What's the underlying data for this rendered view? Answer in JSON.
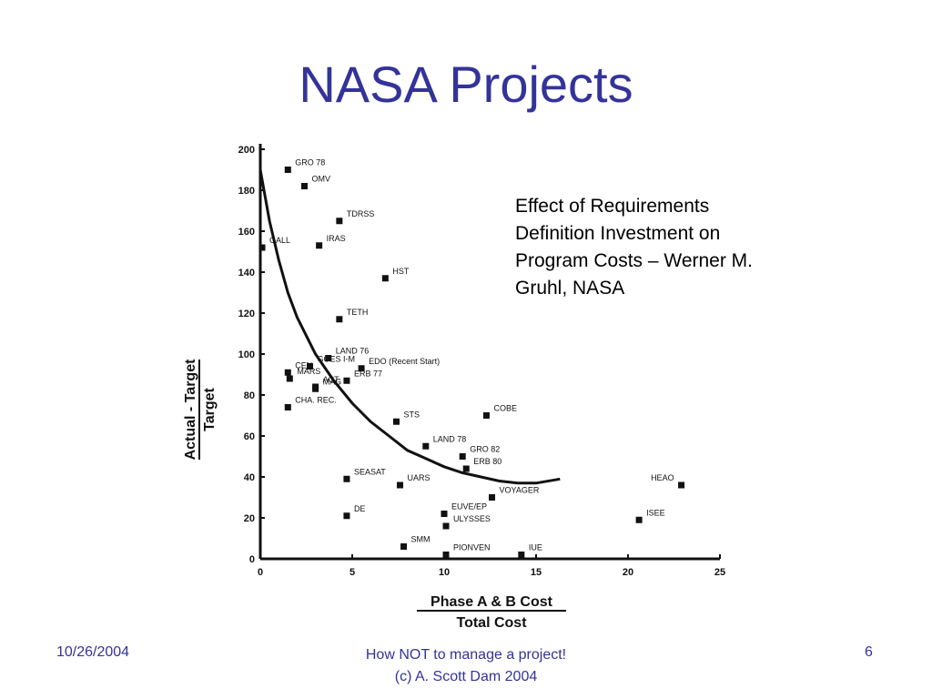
{
  "slide": {
    "title": "NASA Projects",
    "caption_lines": [
      "Effect of Requirements",
      "Definition Investment on",
      "Program Costs – Werner M.",
      "Gruhl, NASA"
    ]
  },
  "footer": {
    "date": "10/26/2004",
    "center_line1": "How NOT to manage a project!",
    "center_line2": "(c) A. Scott Dam 2004",
    "page": "6"
  },
  "colors": {
    "title": "#333399",
    "footer": "#333399",
    "points": "#111111"
  },
  "chart_data": {
    "type": "scatter",
    "xlabel": "Phase A & B Cost",
    "xlabel2": "Total Cost",
    "ylabel": "Actual - Target",
    "ylabel2": "Target",
    "xlim": [
      0,
      25
    ],
    "ylim": [
      0,
      200
    ],
    "x_ticks": [
      "0",
      "5",
      "10",
      "15",
      "20",
      "25"
    ],
    "y_ticks": [
      "0",
      "20",
      "40",
      "60",
      "80",
      "100",
      "120",
      "140",
      "160",
      "180",
      "200"
    ],
    "grid": false,
    "points": [
      {
        "label": "GRO 78",
        "x": 1.5,
        "y": 190
      },
      {
        "label": "OMV",
        "x": 2.4,
        "y": 182
      },
      {
        "label": "TDRSS",
        "x": 4.3,
        "y": 165
      },
      {
        "label": "GALL",
        "x": 0.1,
        "y": 152
      },
      {
        "label": "IRAS",
        "x": 3.2,
        "y": 153
      },
      {
        "label": "HST",
        "x": 6.8,
        "y": 137
      },
      {
        "label": "TETH",
        "x": 4.3,
        "y": 117
      },
      {
        "label": "GOES I-M",
        "x": 2.7,
        "y": 94
      },
      {
        "label": "CEN",
        "x": 1.5,
        "y": 91
      },
      {
        "label": "LAND 76",
        "x": 3.7,
        "y": 98
      },
      {
        "label": "MARS",
        "x": 1.6,
        "y": 88
      },
      {
        "label": "EDO (Recent Start)",
        "x": 5.5,
        "y": 93
      },
      {
        "label": "ERB 77",
        "x": 4.7,
        "y": 87
      },
      {
        "label": "ACT.",
        "x": 3.0,
        "y": 84
      },
      {
        "label": "MAG",
        "x": 3.0,
        "y": 83
      },
      {
        "label": "CHA. REC.",
        "x": 1.5,
        "y": 74
      },
      {
        "label": "COBE",
        "x": 12.3,
        "y": 70
      },
      {
        "label": "STS",
        "x": 7.4,
        "y": 67
      },
      {
        "label": "LAND 78",
        "x": 9.0,
        "y": 55
      },
      {
        "label": "GRO 82",
        "x": 11.0,
        "y": 50
      },
      {
        "label": "ERB 80",
        "x": 11.2,
        "y": 44
      },
      {
        "label": "SEASAT",
        "x": 4.7,
        "y": 39
      },
      {
        "label": "UARS",
        "x": 7.6,
        "y": 36
      },
      {
        "label": "HEAO",
        "x": 22.9,
        "y": 36
      },
      {
        "label": "VOYAGER",
        "x": 12.6,
        "y": 30
      },
      {
        "label": "DE",
        "x": 4.7,
        "y": 21
      },
      {
        "label": "EUVE/EP",
        "x": 10.0,
        "y": 22
      },
      {
        "label": "ULYSSES",
        "x": 10.1,
        "y": 16
      },
      {
        "label": "ISEE",
        "x": 20.6,
        "y": 19
      },
      {
        "label": "SMM",
        "x": 7.8,
        "y": 6
      },
      {
        "label": "PIONVEN",
        "x": 10.1,
        "y": 2
      },
      {
        "label": "IUE",
        "x": 14.2,
        "y": 2
      }
    ],
    "trend": {
      "name": "",
      "x": [
        0,
        0.5,
        1,
        1.5,
        2,
        3,
        4,
        5,
        6,
        7,
        8,
        9,
        10,
        11,
        12,
        13,
        14,
        15,
        16.3
      ],
      "y": [
        190,
        165,
        146,
        130,
        118,
        100,
        87,
        76,
        67,
        60,
        53,
        49,
        45,
        42,
        40,
        38,
        37,
        37,
        39
      ]
    }
  }
}
